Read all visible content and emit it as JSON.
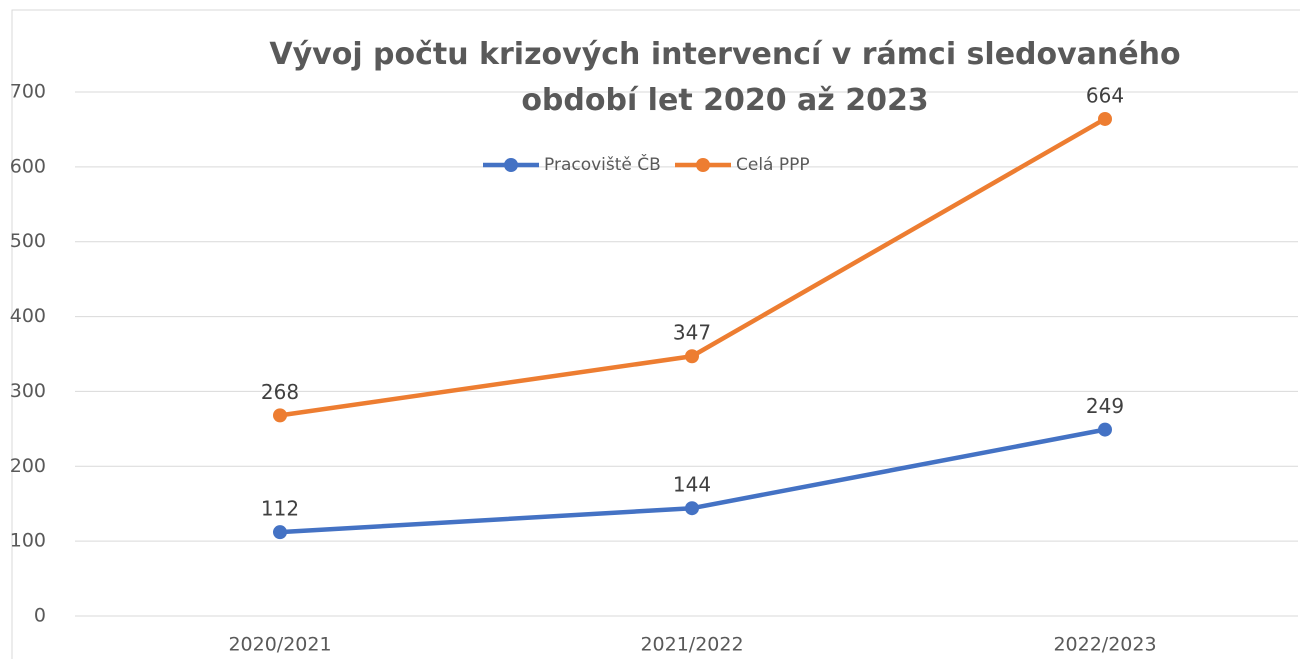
{
  "chart_data": {
    "type": "line",
    "title": "Vývoj počtu krizových intervencí v rámci sledovaného období let 2020 až 2023",
    "categories": [
      "2020/2021",
      "2021/2022",
      "2022/2023"
    ],
    "series": [
      {
        "name": "Pracoviště ČB",
        "color": "#4472c4",
        "values": [
          112,
          144,
          249
        ]
      },
      {
        "name": "Celá PPP",
        "color": "#ed7d31",
        "values": [
          268,
          347,
          664
        ]
      }
    ],
    "ylim": [
      0,
      700
    ],
    "yticks": [
      0,
      100,
      200,
      300,
      400,
      500,
      600,
      700
    ],
    "grid": true,
    "legend": "top"
  }
}
